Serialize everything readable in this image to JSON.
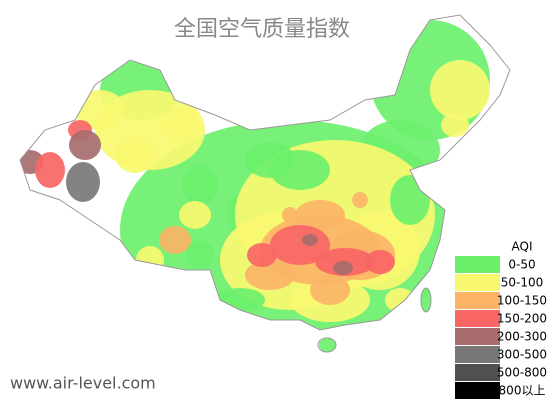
{
  "title": "全国空气质量指数",
  "legend": {
    "title": "AQI",
    "items": [
      {
        "label": "0-50",
        "color": "#6cf06c"
      },
      {
        "label": "50-100",
        "color": "#f8f870"
      },
      {
        "label": "100-150",
        "color": "#fbb466"
      },
      {
        "label": "150-200",
        "color": "#f86666"
      },
      {
        "label": "200-300",
        "color": "#a86c6c"
      },
      {
        "label": "300-500",
        "color": "#787878"
      },
      {
        "label": "500-800",
        "color": "#505050"
      },
      {
        "label": "800以上",
        "color": "#000000"
      }
    ]
  },
  "watermark": "www.air-level.com"
}
